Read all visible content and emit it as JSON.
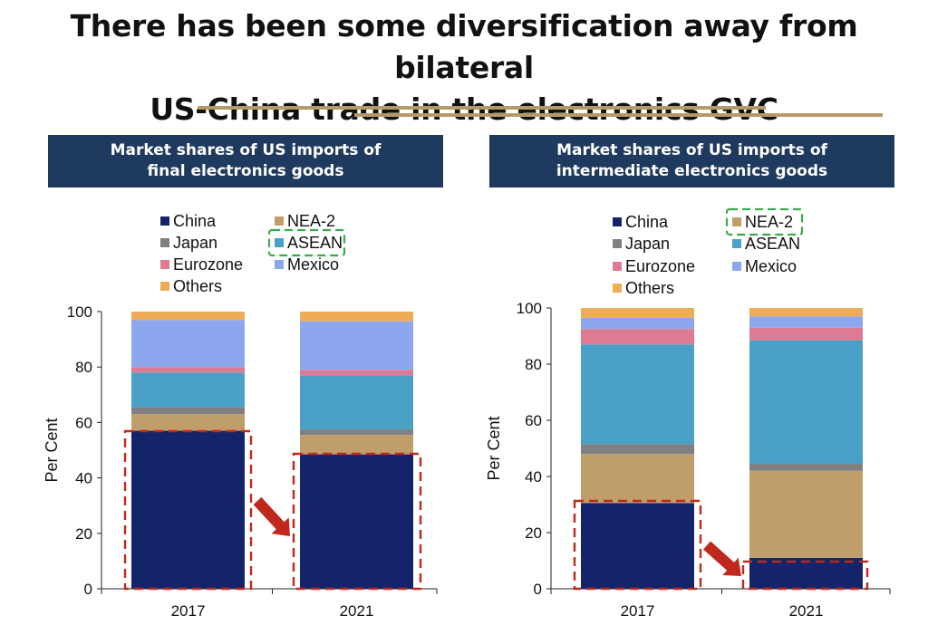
{
  "title_line1": "There has been some diversification away from bilateral",
  "title_line2": "US-China trade in the electronics GVC",
  "colors": {
    "China": "#13246a",
    "NEA-2": "#bf9e69",
    "Japan": "#808080",
    "ASEAN": "#4aa1c7",
    "Eurozone": "#de7b92",
    "Mexico": "#8da7ee",
    "Others": "#eeac58",
    "highlight_red": "#c0281d",
    "highlight_green": "#3aaa4c",
    "header_bg": "#1f3a5f",
    "accent_rule": "#b49a6a"
  },
  "chart_data": [
    {
      "type": "bar",
      "stacked": true,
      "title_line1": "Market shares of US imports of",
      "title_line2": "final electronics goods",
      "ylabel": "Per Cent",
      "ylim": [
        0,
        100
      ],
      "yticks": [
        "0",
        "20",
        "40",
        "60",
        "80",
        "100"
      ],
      "categories": [
        "2017",
        "2021"
      ],
      "legend_highlight": "ASEAN",
      "series": [
        {
          "name": "China",
          "values": [
            57,
            48.5
          ]
        },
        {
          "name": "NEA-2",
          "values": [
            6,
            7
          ]
        },
        {
          "name": "Japan",
          "values": [
            2.5,
            2
          ]
        },
        {
          "name": "ASEAN",
          "values": [
            12.5,
            19.5
          ]
        },
        {
          "name": "Eurozone",
          "values": [
            2,
            2
          ]
        },
        {
          "name": "Mexico",
          "values": [
            17,
            17.5
          ]
        },
        {
          "name": "Others",
          "values": [
            3,
            3.5
          ]
        }
      ]
    },
    {
      "type": "bar",
      "stacked": true,
      "title_line1": "Market shares of US imports of",
      "title_line2": "intermediate electronics goods",
      "ylabel": "Per Cent",
      "ylim": [
        0,
        100
      ],
      "yticks": [
        "0",
        "20",
        "40",
        "60",
        "80",
        "100"
      ],
      "categories": [
        "2017",
        "2021"
      ],
      "legend_highlight": "NEA-2",
      "series": [
        {
          "name": "China",
          "values": [
            30.5,
            11
          ]
        },
        {
          "name": "NEA-2",
          "values": [
            17.5,
            31
          ]
        },
        {
          "name": "Japan",
          "values": [
            3.5,
            2.5
          ]
        },
        {
          "name": "ASEAN",
          "values": [
            35.5,
            44
          ]
        },
        {
          "name": "Eurozone",
          "values": [
            5.5,
            4.5
          ]
        },
        {
          "name": "Mexico",
          "values": [
            4,
            4
          ]
        },
        {
          "name": "Others",
          "values": [
            3.5,
            3
          ]
        }
      ]
    }
  ]
}
